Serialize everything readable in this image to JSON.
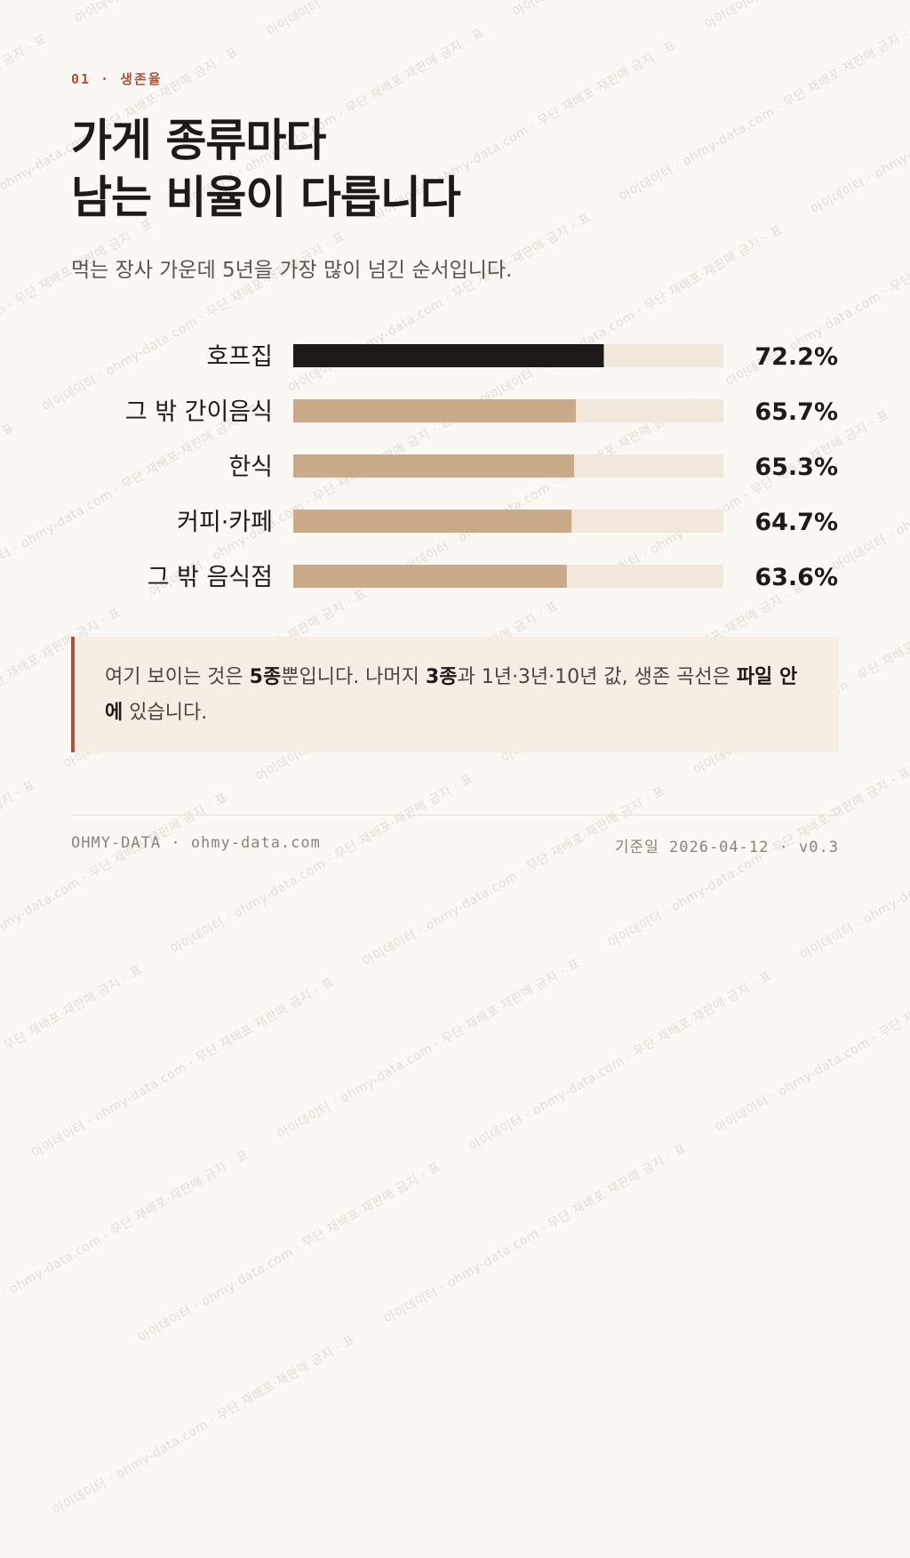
{
  "kicker": "01 · 생존율",
  "title": {
    "line1": "가게 종류마다",
    "line2": "남는 비율이 다릅니다"
  },
  "subtitle": "먹는 장사 가운데 5년을 가장 많이 넘긴 순서입니다.",
  "chart_data": {
    "type": "bar",
    "orientation": "horizontal",
    "categories": [
      "호프집",
      "그 밖 간이음식",
      "한식",
      "커피·카페",
      "그 밖 음식점"
    ],
    "values": [
      72.2,
      65.7,
      65.3,
      64.7,
      63.6
    ],
    "value_labels": [
      "72.2%",
      "65.7%",
      "65.3%",
      "64.7%",
      "63.6%"
    ],
    "xlim": [
      0,
      100
    ],
    "grid": false,
    "colors": {
      "highlight": "#1f1a17",
      "bar": "#c9ab8a",
      "track": "#f1e8db"
    }
  },
  "note": {
    "part1": "여기 보이는 것은 ",
    "bold1": "5종",
    "part2": "뿐입니다. 나머지 ",
    "bold2": "3종",
    "part3": "과 1년·3년·10년 값, 생존 곡선은 ",
    "bold3": "파일 안에",
    "part4": " 있습니다."
  },
  "footer": {
    "left": "OHMY-DATA · ohmy-data.com",
    "right": "기준일 2026-04-12 · v0.3"
  },
  "watermark": "아이데이터 · ohmy-data.com · 무단 재배포·재판매 금지 · 표"
}
